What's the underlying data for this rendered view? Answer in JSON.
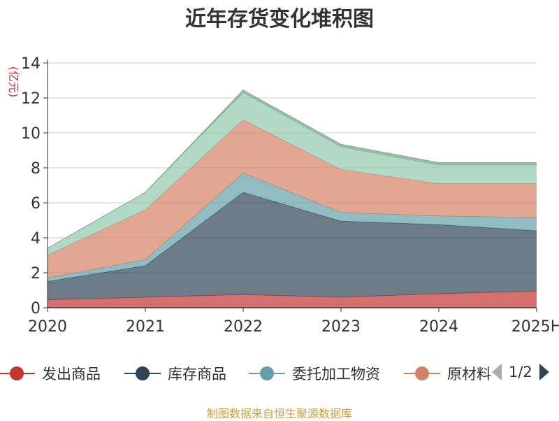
{
  "title": "近年存货变化堆积图",
  "source_note": "制图数据来自恒生聚源数据库",
  "legend_pager": "1/2",
  "chart_data": {
    "type": "area",
    "stacked": true,
    "title": "近年存货变化堆积图",
    "ylabel": "(亿元)",
    "xlabel": "",
    "categories": [
      "2020",
      "2021",
      "2022",
      "2023",
      "2024",
      "2025H"
    ],
    "ylim": [
      0,
      14
    ],
    "yticks": [
      0,
      2,
      4,
      6,
      8,
      10,
      12,
      14
    ],
    "grid": true,
    "legend_position": "bottom",
    "series": [
      {
        "name": "发出商品",
        "color": "#c23531",
        "values": [
          0.45,
          0.6,
          0.75,
          0.6,
          0.8,
          0.95
        ]
      },
      {
        "name": "库存商品",
        "color": "#2f4554",
        "values": [
          1.05,
          1.8,
          5.85,
          4.35,
          3.95,
          3.45
        ]
      },
      {
        "name": "委托加工物资",
        "color": "#61a0a8",
        "values": [
          0.2,
          0.35,
          1.1,
          0.5,
          0.5,
          0.75
        ]
      },
      {
        "name": "原材料",
        "color": "#d48265",
        "values": [
          1.3,
          2.85,
          3.05,
          2.45,
          1.85,
          1.95
        ]
      },
      {
        "name": "",
        "color": "#91c7ae",
        "values": [
          0.4,
          1.0,
          1.55,
          1.3,
          1.05,
          1.05
        ]
      },
      {
        "name": "",
        "color": "#749f83",
        "values": [
          0.0,
          0.0,
          0.15,
          0.15,
          0.15,
          0.15
        ]
      }
    ]
  }
}
